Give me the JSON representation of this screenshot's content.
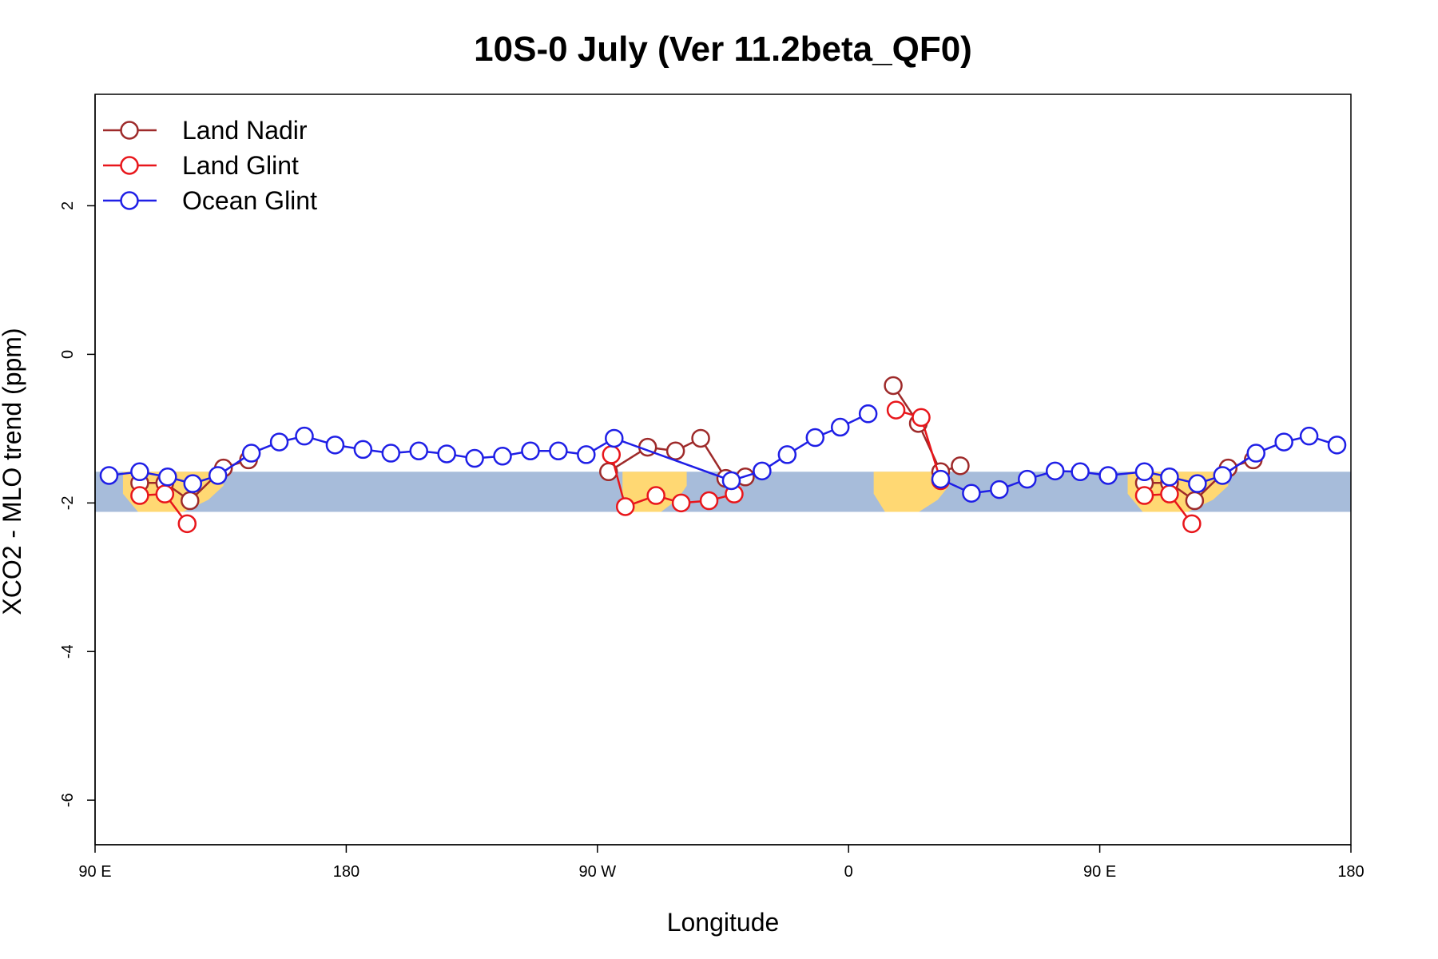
{
  "chart_data": {
    "type": "line",
    "title": "10S-0 July (Ver 11.2beta_QF0)",
    "xlabel": "Longitude",
    "ylabel": "XCO2 - MLO trend (ppm)",
    "xlim": [
      90,
      540
    ],
    "ylim": [
      -6.6,
      3.5
    ],
    "x_ticks": [
      {
        "value": 90,
        "label": "90 E"
      },
      {
        "value": 180,
        "label": "180"
      },
      {
        "value": 270,
        "label": "90 W"
      },
      {
        "value": 360,
        "label": "0"
      },
      {
        "value": 450,
        "label": "90 E"
      },
      {
        "value": 540,
        "label": "180"
      }
    ],
    "y_ticks": [
      {
        "value": 2,
        "label": "2"
      },
      {
        "value": 0,
        "label": "0"
      },
      {
        "value": -2,
        "label": "-2"
      },
      {
        "value": -4,
        "label": "-4"
      },
      {
        "value": -6,
        "label": "-6"
      }
    ],
    "legend_position": "top-left",
    "colors": {
      "ocean_band": "#a7bcda",
      "land": "#ffd873",
      "frame": "#000000"
    },
    "map_band": {
      "y_top": -1.58,
      "y_bottom": -2.12
    },
    "land_regions": [
      {
        "x": [
          100,
          136
        ],
        "y_top": -1.58,
        "y_bottom": -2.12
      },
      {
        "x": [
          279,
          302
        ],
        "y_top": -1.58,
        "y_bottom": -2.12
      },
      {
        "x": [
          369,
          396
        ],
        "y_top": -1.58,
        "y_bottom": -2.12
      },
      {
        "x": [
          460,
          496
        ],
        "y_top": -1.58,
        "y_bottom": -2.12
      }
    ],
    "series": [
      {
        "name": "Land Nadir",
        "color": "#9e2a2a",
        "segments": [
          [
            [
              106,
              -1.73
            ],
            [
              115,
              -1.73
            ],
            [
              124,
              -1.97
            ],
            [
              136,
              -1.53
            ],
            [
              145,
              -1.42
            ]
          ],
          [
            [
              274,
              -1.58
            ],
            [
              288,
              -1.25
            ],
            [
              298,
              -1.3
            ],
            [
              307,
              -1.13
            ],
            [
              316,
              -1.67
            ],
            [
              323,
              -1.65
            ]
          ],
          [
            [
              376,
              -0.42
            ],
            [
              385,
              -0.93
            ],
            [
              393,
              -1.58
            ],
            [
              400,
              -1.5
            ]
          ],
          [
            [
              466,
              -1.73
            ],
            [
              475,
              -1.73
            ],
            [
              484,
              -1.97
            ],
            [
              496,
              -1.53
            ],
            [
              505,
              -1.42
            ]
          ]
        ]
      },
      {
        "name": "Land Glint",
        "color": "#e8161b",
        "segments": [
          [
            [
              106,
              -1.9
            ],
            [
              115,
              -1.88
            ],
            [
              123,
              -2.28
            ]
          ],
          [
            [
              275,
              -1.35
            ],
            [
              280,
              -2.05
            ],
            [
              291,
              -1.9
            ],
            [
              300,
              -2.0
            ],
            [
              310,
              -1.97
            ],
            [
              319,
              -1.88
            ]
          ],
          [
            [
              377,
              -0.75
            ],
            [
              386,
              -0.85
            ],
            [
              393,
              -1.7
            ]
          ],
          [
            [
              466,
              -1.9
            ],
            [
              475,
              -1.88
            ],
            [
              483,
              -2.28
            ]
          ]
        ]
      },
      {
        "name": "Ocean Glint",
        "color": "#1f1fe6",
        "segments": [
          [
            [
              95,
              -1.63
            ],
            [
              106,
              -1.58
            ],
            [
              116,
              -1.65
            ],
            [
              125,
              -1.74
            ],
            [
              134,
              -1.63
            ],
            [
              146,
              -1.33
            ],
            [
              156,
              -1.18
            ],
            [
              165,
              -1.1
            ],
            [
              176,
              -1.22
            ],
            [
              186,
              -1.28
            ],
            [
              196,
              -1.33
            ],
            [
              206,
              -1.3
            ],
            [
              216,
              -1.34
            ],
            [
              226,
              -1.4
            ],
            [
              236,
              -1.37
            ],
            [
              246,
              -1.3
            ],
            [
              256,
              -1.3
            ],
            [
              266,
              -1.35
            ],
            [
              276,
              -1.13
            ],
            [
              318,
              -1.7
            ],
            [
              329,
              -1.57
            ],
            [
              338,
              -1.35
            ],
            [
              348,
              -1.12
            ],
            [
              357,
              -0.98
            ],
            [
              367,
              -0.8
            ]
          ],
          [
            [
              393,
              -1.68
            ],
            [
              404,
              -1.87
            ],
            [
              414,
              -1.82
            ],
            [
              424,
              -1.68
            ],
            [
              434,
              -1.57
            ],
            [
              443,
              -1.58
            ],
            [
              453,
              -1.63
            ],
            [
              466,
              -1.58
            ],
            [
              475,
              -1.65
            ],
            [
              485,
              -1.74
            ],
            [
              494,
              -1.63
            ],
            [
              506,
              -1.33
            ],
            [
              516,
              -1.18
            ],
            [
              525,
              -1.1
            ],
            [
              535,
              -1.22
            ]
          ]
        ]
      }
    ]
  }
}
